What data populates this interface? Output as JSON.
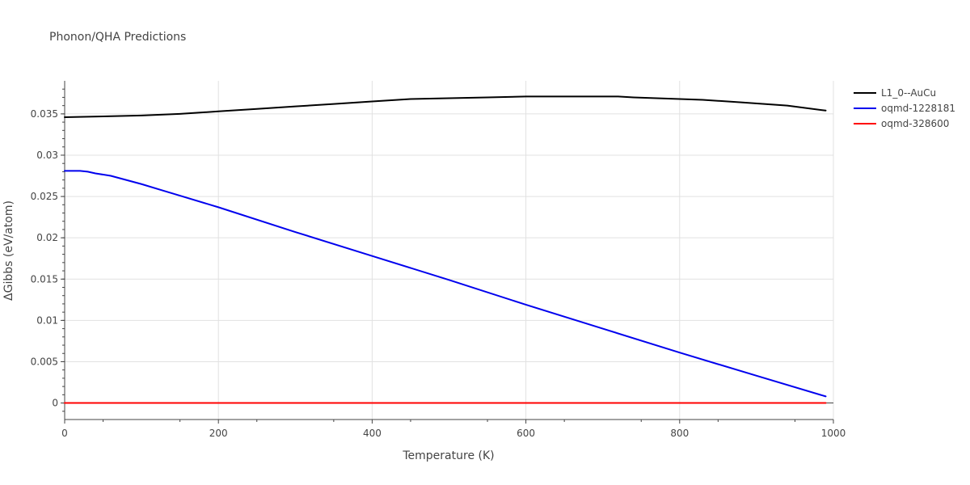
{
  "chart_data": {
    "type": "line",
    "title": "Phonon/QHA Predictions",
    "xlabel": "Temperature (K)",
    "ylabel": "ΔGibbs (eV/atom)",
    "xlim": [
      0,
      1000
    ],
    "ylim": [
      -0.002,
      0.039
    ],
    "xticks": [
      0,
      200,
      400,
      600,
      800,
      1000
    ],
    "yticks": [
      0,
      0.005,
      0.01,
      0.015,
      0.02,
      0.025,
      0.03,
      0.035
    ],
    "ytick_labels": [
      "0",
      "0.005",
      "0.01",
      "0.015",
      "0.02",
      "0.025",
      "0.03",
      "0.035"
    ],
    "grid": true,
    "legend_position": "top-right",
    "series": [
      {
        "name": "L1_0--AuCu",
        "color": "#000000",
        "x": [
          0,
          50,
          100,
          150,
          200,
          250,
          300,
          350,
          400,
          450,
          500,
          550,
          600,
          650,
          700,
          720,
          740,
          800,
          830,
          880,
          940,
          990
        ],
        "y": [
          0.0346,
          0.0347,
          0.0348,
          0.035,
          0.0353,
          0.0356,
          0.0359,
          0.0362,
          0.0365,
          0.0368,
          0.0369,
          0.037,
          0.0371,
          0.0371,
          0.0371,
          0.0371,
          0.037,
          0.0368,
          0.0367,
          0.0364,
          0.036,
          0.0354
        ]
      },
      {
        "name": "oqmd-1228181",
        "color": "#0000ee",
        "x": [
          0,
          10,
          20,
          30,
          40,
          60,
          80,
          100,
          125,
          150,
          200,
          300,
          400,
          500,
          600,
          700,
          800,
          900,
          990
        ],
        "y": [
          0.0281,
          0.0281,
          0.0281,
          0.028,
          0.0278,
          0.0275,
          0.027,
          0.0265,
          0.0258,
          0.0251,
          0.0237,
          0.0207,
          0.0178,
          0.0149,
          0.0119,
          0.009,
          0.0061,
          0.0033,
          0.0008
        ]
      },
      {
        "name": "oqmd-328600",
        "color": "#ff0000",
        "x": [
          0,
          990
        ],
        "y": [
          0,
          0
        ]
      }
    ]
  }
}
